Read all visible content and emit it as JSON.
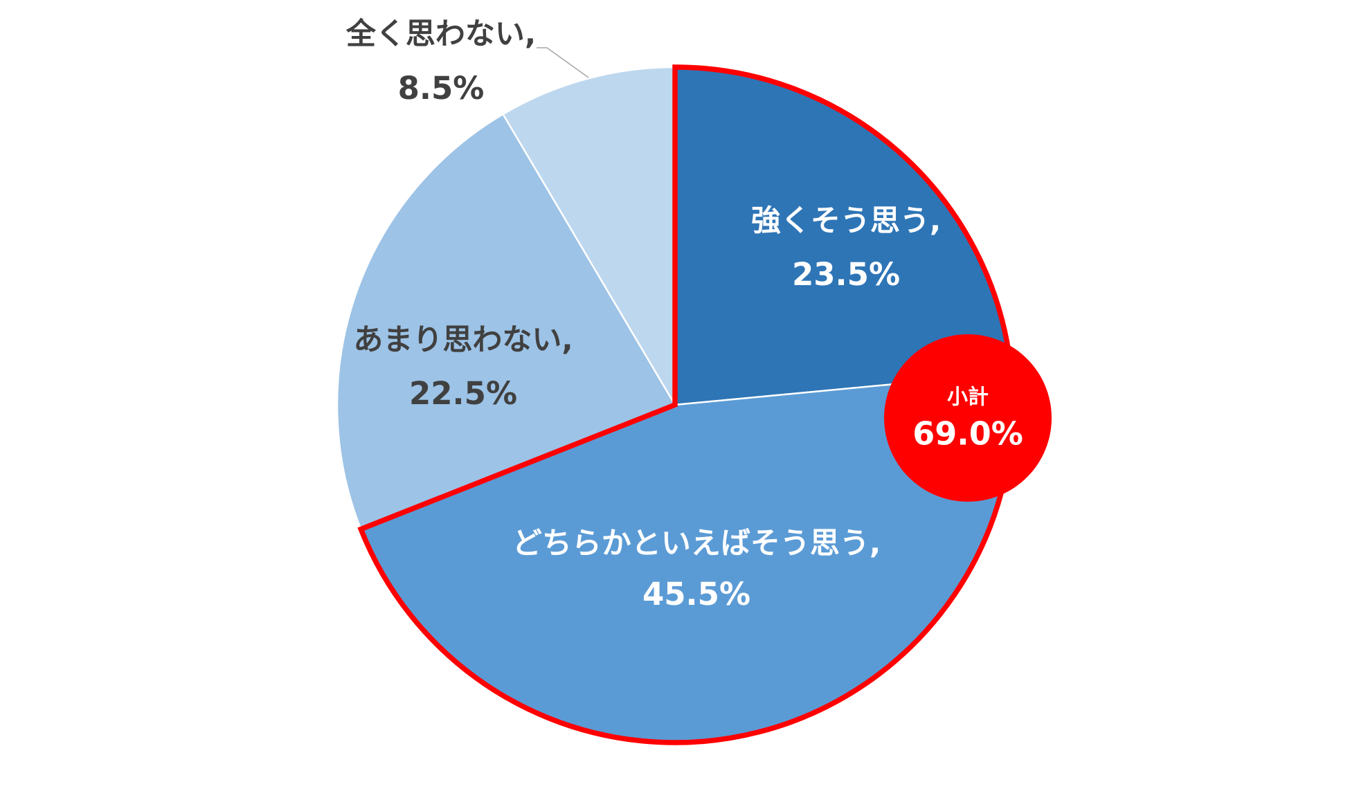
{
  "chart_data": {
    "type": "pie",
    "categories": [
      "強くそう思う,",
      "どちらかといえばそう思う,",
      "あまり思わない,",
      "全く思わない,"
    ],
    "values": [
      23.5,
      45.5,
      22.5,
      8.5
    ],
    "value_labels": [
      "23.5%",
      "45.5%",
      "22.5%",
      "8.5%"
    ],
    "colors": [
      "#2e75b6",
      "#5b9bd5",
      "#9dc3e6",
      "#bdd7ee"
    ],
    "subtotal": {
      "label": "小計",
      "value": 69.0,
      "value_label": "69.0%",
      "color": "#ff0000"
    }
  }
}
